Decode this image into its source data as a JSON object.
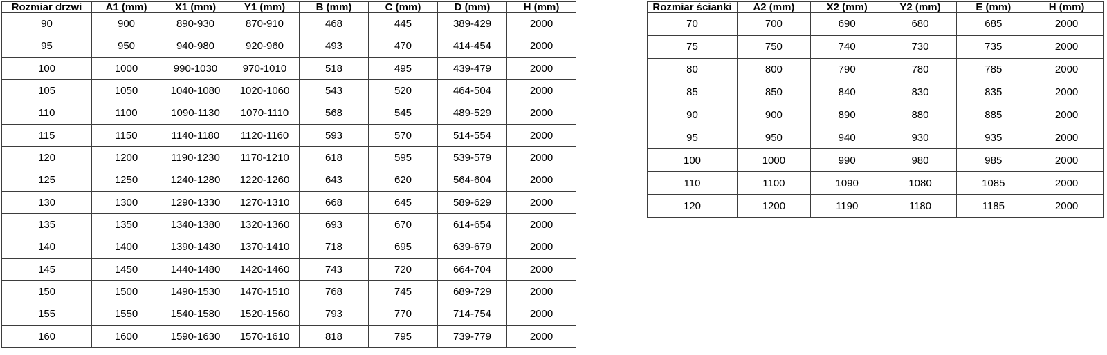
{
  "page": {
    "background_color": "#ffffff",
    "border_color": "#3d3d3d",
    "text_color": "#000000"
  },
  "door_table": {
    "name": "door-size-table",
    "headers": [
      "Rozmiar drzwi",
      "A1 (mm)",
      "X1 (mm)",
      "Y1 (mm)",
      "B (mm)",
      "C (mm)",
      "D (mm)",
      "H (mm)"
    ],
    "rows": [
      [
        "90",
        "900",
        "890-930",
        "870-910",
        "468",
        "445",
        "389-429",
        "2000"
      ],
      [
        "95",
        "950",
        "940-980",
        "920-960",
        "493",
        "470",
        "414-454",
        "2000"
      ],
      [
        "100",
        "1000",
        "990-1030",
        "970-1010",
        "518",
        "495",
        "439-479",
        "2000"
      ],
      [
        "105",
        "1050",
        "1040-1080",
        "1020-1060",
        "543",
        "520",
        "464-504",
        "2000"
      ],
      [
        "110",
        "1100",
        "1090-1130",
        "1070-1110",
        "568",
        "545",
        "489-529",
        "2000"
      ],
      [
        "115",
        "1150",
        "1140-1180",
        "1120-1160",
        "593",
        "570",
        "514-554",
        "2000"
      ],
      [
        "120",
        "1200",
        "1190-1230",
        "1170-1210",
        "618",
        "595",
        "539-579",
        "2000"
      ],
      [
        "125",
        "1250",
        "1240-1280",
        "1220-1260",
        "643",
        "620",
        "564-604",
        "2000"
      ],
      [
        "130",
        "1300",
        "1290-1330",
        "1270-1310",
        "668",
        "645",
        "589-629",
        "2000"
      ],
      [
        "135",
        "1350",
        "1340-1380",
        "1320-1360",
        "693",
        "670",
        "614-654",
        "2000"
      ],
      [
        "140",
        "1400",
        "1390-1430",
        "1370-1410",
        "718",
        "695",
        "639-679",
        "2000"
      ],
      [
        "145",
        "1450",
        "1440-1480",
        "1420-1460",
        "743",
        "720",
        "664-704",
        "2000"
      ],
      [
        "150",
        "1500",
        "1490-1530",
        "1470-1510",
        "768",
        "745",
        "689-729",
        "2000"
      ],
      [
        "155",
        "1550",
        "1540-1580",
        "1520-1560",
        "793",
        "770",
        "714-754",
        "2000"
      ],
      [
        "160",
        "1600",
        "1590-1630",
        "1570-1610",
        "818",
        "795",
        "739-779",
        "2000"
      ]
    ]
  },
  "wall_table": {
    "name": "wall-size-table",
    "headers": [
      "Rozmiar ścianki",
      "A2 (mm)",
      "X2 (mm)",
      "Y2 (mm)",
      "E (mm)",
      "H (mm)"
    ],
    "rows": [
      [
        "70",
        "700",
        "690",
        "680",
        "685",
        "2000"
      ],
      [
        "75",
        "750",
        "740",
        "730",
        "735",
        "2000"
      ],
      [
        "80",
        "800",
        "790",
        "780",
        "785",
        "2000"
      ],
      [
        "85",
        "850",
        "840",
        "830",
        "835",
        "2000"
      ],
      [
        "90",
        "900",
        "890",
        "880",
        "885",
        "2000"
      ],
      [
        "95",
        "950",
        "940",
        "930",
        "935",
        "2000"
      ],
      [
        "100",
        "1000",
        "990",
        "980",
        "985",
        "2000"
      ],
      [
        "110",
        "1100",
        "1090",
        "1080",
        "1085",
        "2000"
      ],
      [
        "120",
        "1200",
        "1190",
        "1180",
        "1185",
        "2000"
      ]
    ]
  }
}
